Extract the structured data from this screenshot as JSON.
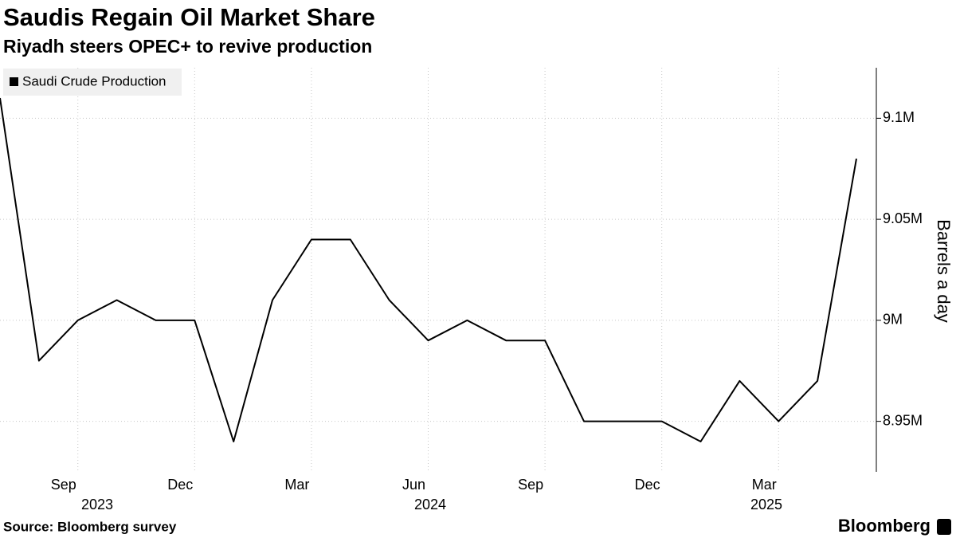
{
  "chart_data": {
    "type": "line",
    "title": "Saudis Regain Oil Market Share",
    "subtitle": "Riyadh steers OPEC+ to revive production",
    "y_label": "Barrels a day",
    "source": "Source: Bloomberg survey",
    "brand": "Bloomberg",
    "categories": [
      null,
      null,
      "Sep",
      null,
      null,
      "Dec",
      null,
      null,
      "Mar",
      null,
      null,
      "Jun",
      null,
      null,
      "Sep",
      null,
      null,
      "Dec",
      null,
      null,
      "Mar",
      null,
      null
    ],
    "x_group_labels": [
      "2023",
      "2024",
      "2025"
    ],
    "series": [
      {
        "name": "Saudi Crude Production",
        "color": "#000000",
        "values": [
          9110000,
          8980000,
          9000000,
          9010000,
          9000000,
          9000000,
          8940000,
          9010000,
          9040000,
          9040000,
          9010000,
          8990000,
          9000000,
          8990000,
          8990000,
          8950000,
          8950000,
          8950000,
          8940000,
          8970000,
          8950000,
          8970000,
          9080000
        ]
      }
    ],
    "ylim": [
      8925000,
      9125000
    ],
    "yticks": [
      {
        "value": 8950000,
        "label": "8.95M"
      },
      {
        "value": 9000000,
        "label": "9M"
      },
      {
        "value": 9050000,
        "label": "9.05M"
      },
      {
        "value": 9100000,
        "label": "9.1M"
      }
    ],
    "grid": true,
    "legend": "top-left"
  }
}
